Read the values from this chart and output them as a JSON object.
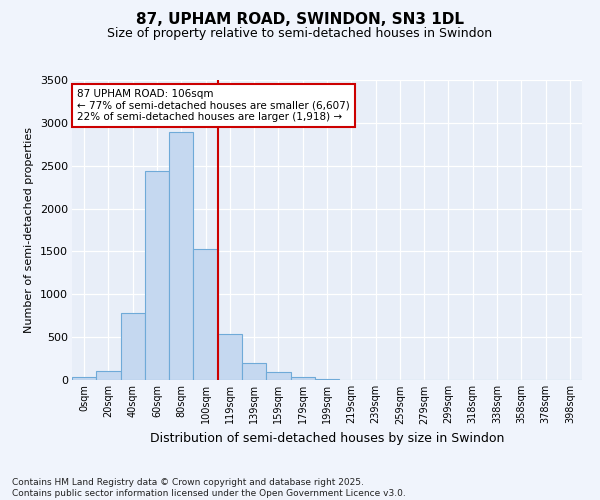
{
  "title": "87, UPHAM ROAD, SWINDON, SN3 1DL",
  "subtitle": "Size of property relative to semi-detached houses in Swindon",
  "xlabel": "Distribution of semi-detached houses by size in Swindon",
  "ylabel": "Number of semi-detached properties",
  "footnote": "Contains HM Land Registry data © Crown copyright and database right 2025.\nContains public sector information licensed under the Open Government Licence v3.0.",
  "bar_labels": [
    "0sqm",
    "20sqm",
    "40sqm",
    "60sqm",
    "80sqm",
    "100sqm",
    "119sqm",
    "139sqm",
    "159sqm",
    "179sqm",
    "199sqm",
    "219sqm",
    "239sqm",
    "259sqm",
    "279sqm",
    "299sqm",
    "318sqm",
    "338sqm",
    "358sqm",
    "378sqm",
    "398sqm"
  ],
  "bar_values": [
    40,
    100,
    780,
    2440,
    2890,
    1530,
    540,
    200,
    95,
    40,
    10,
    4,
    2,
    1,
    0,
    0,
    0,
    0,
    0,
    0,
    0
  ],
  "bar_color": "#c5d8f0",
  "bar_edgecolor": "#6faad8",
  "vline_color": "#cc0000",
  "ylim": [
    0,
    3500
  ],
  "yticks": [
    0,
    500,
    1000,
    1500,
    2000,
    2500,
    3000,
    3500
  ],
  "annotation_text": "87 UPHAM ROAD: 106sqm\n← 77% of semi-detached houses are smaller (6,607)\n22% of semi-detached houses are larger (1,918) →",
  "annotation_box_facecolor": "#ffffff",
  "annotation_box_edgecolor": "#cc0000",
  "bg_color": "#f0f4fc",
  "plot_bg_color": "#e8eef8",
  "title_fontsize": 11,
  "subtitle_fontsize": 9,
  "tick_fontsize": 7,
  "ylabel_fontsize": 8,
  "xlabel_fontsize": 9,
  "annot_fontsize": 7.5,
  "footnote_fontsize": 6.5
}
